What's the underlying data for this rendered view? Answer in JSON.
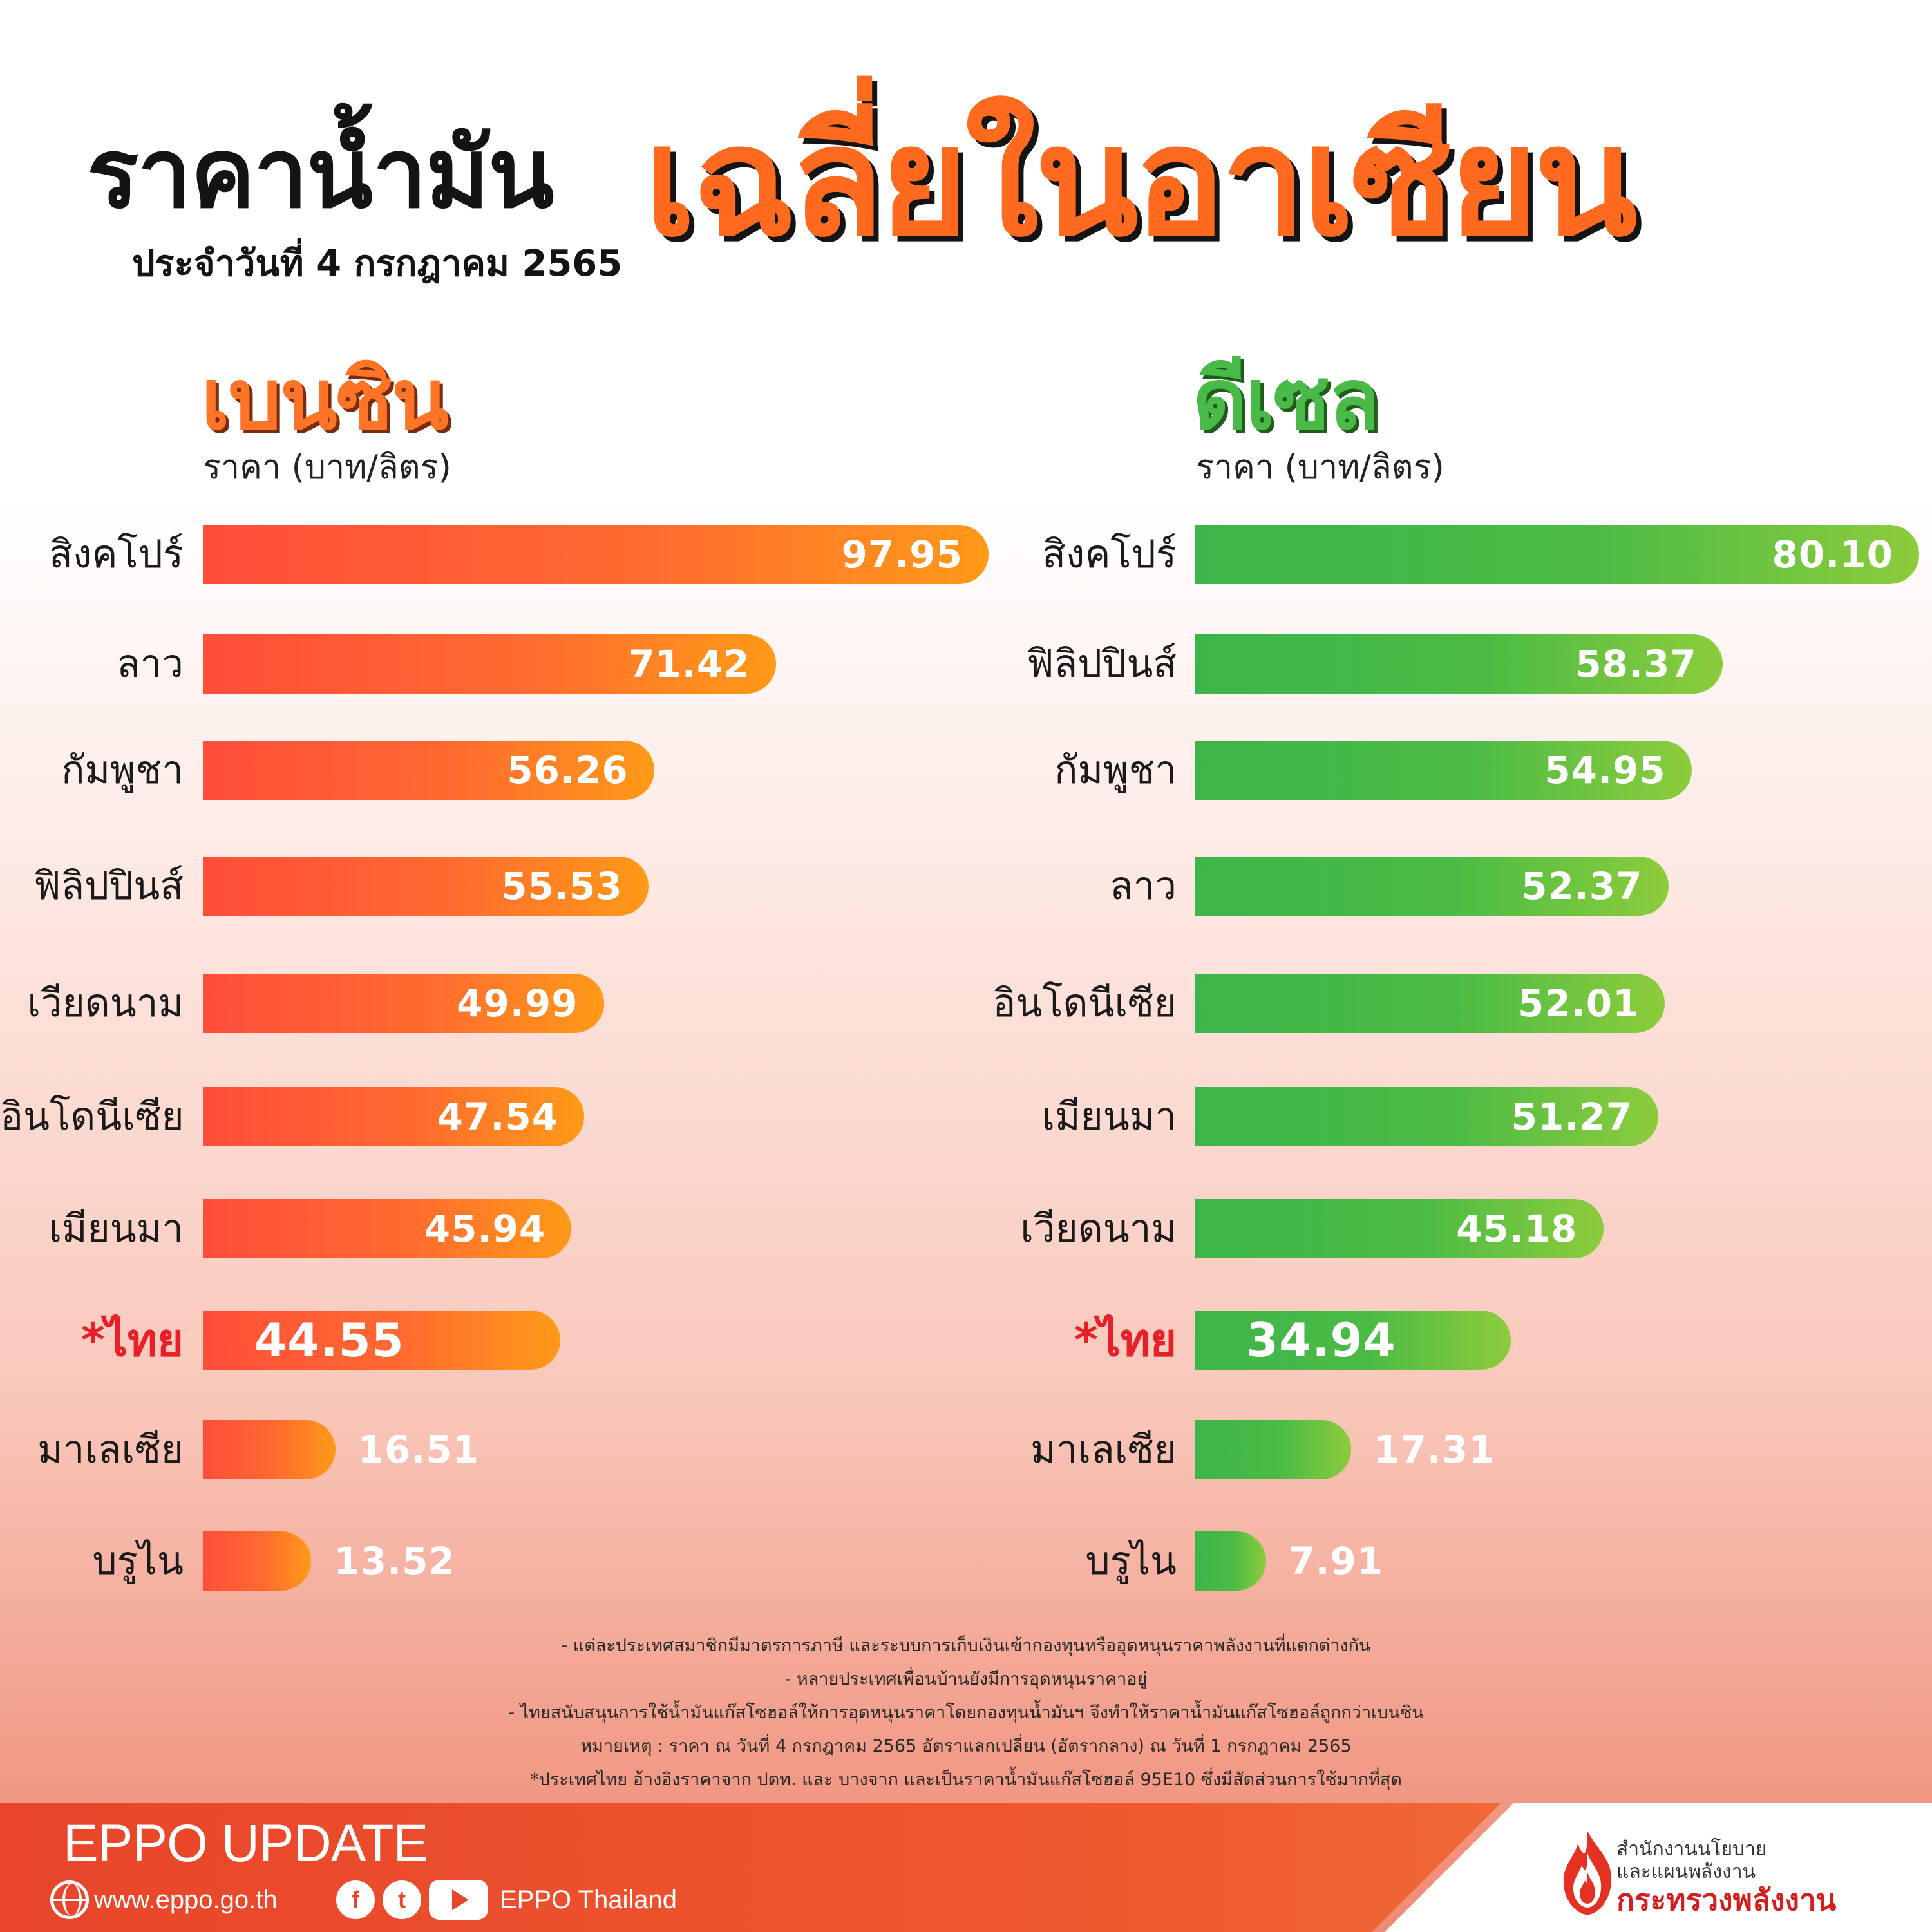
{
  "header": {
    "title": "ราคาน้ำมัน",
    "title_accent": "เฉลี่ยในอาเซียน",
    "date": "ประจำวันที่ 4 กรกฎาคม 2565"
  },
  "colors": {
    "petrol_accent": "#ff6a1f",
    "diesel_accent": "#49b947",
    "highlight_label": "#e8202a",
    "footer_band": "#e8452a"
  },
  "chart_data": [
    {
      "type": "bar",
      "orientation": "horizontal",
      "title": "เบนซิน",
      "xlabel": "ราคา (บาท/ลิตร)",
      "categories": [
        "สิงคโปร์",
        "ลาว",
        "กัมพูชา",
        "ฟิลิปปินส์",
        "เวียดนาม",
        "อินโดนีเซีย",
        "เมียนมา",
        "*ไทย",
        "มาเลเซีย",
        "บรูไน"
      ],
      "values": [
        97.95,
        71.42,
        56.26,
        55.53,
        49.99,
        47.54,
        45.94,
        44.55,
        16.51,
        13.52
      ],
      "value_labels": [
        "97.95",
        "71.42",
        "56.26",
        "55.53",
        "49.99",
        "47.54",
        "45.94",
        "44.55",
        "16.51",
        "13.52"
      ],
      "highlight_category": "*ไทย",
      "grid": false
    },
    {
      "type": "bar",
      "orientation": "horizontal",
      "title": "ดีเซล",
      "xlabel": "ราคา (บาท/ลิตร)",
      "categories": [
        "สิงคโปร์",
        "ฟิลิปปินส์",
        "กัมพูชา",
        "ลาว",
        "อินโดนีเซีย",
        "เมียนมา",
        "เวียดนาม",
        "*ไทย",
        "มาเลเซีย",
        "บรูไน"
      ],
      "values": [
        80.1,
        58.37,
        54.95,
        52.37,
        52.01,
        51.27,
        45.18,
        34.94,
        17.31,
        7.91
      ],
      "value_labels": [
        "80.10",
        "58.37",
        "54.95",
        "52.37",
        "52.01",
        "51.27",
        "45.18",
        "34.94",
        "17.31",
        "7.91"
      ],
      "highlight_category": "*ไทย",
      "grid": false
    }
  ],
  "notes": [
    "- แต่ละประเทศสมาชิกมีมาตรการภาษี และระบบการเก็บเงินเข้ากองทุนหรืออุดหนุนราคาพลังงานที่แตกต่างกัน",
    "- หลายประเทศเพื่อนบ้านยังมีการอุดหนุนราคาอยู่",
    "- ไทยสนับสนุนการใช้น้ำมันแก๊สโซฮอล์ให้การอุดหนุนราคาโดยกองทุนน้ำมันฯ จึงทำให้ราคาน้ำมันแก๊สโซฮอล์ถูกกว่าเบนซิน",
    "หมายเหตุ : ราคา ณ วันที่ 4 กรกฎาคม 2565 อัตราแลกเปลี่ยน (อัตรากลาง) ณ วันที่ 1 กรกฎาคม 2565",
    "*ประเทศไทย อ้างอิงราคาจาก ปตท. และ บางจาก และเป็นราคาน้ำมันแก๊สโซฮอล์ 95E10 ซึ่งมีสัดส่วนการใช้มากที่สุด"
  ],
  "footer": {
    "title": "EPPO UPDATE",
    "website": "www.eppo.go.th",
    "social_name": "EPPO Thailand",
    "social_icons": [
      "globe-icon",
      "facebook-icon",
      "twitter-icon",
      "youtube-icon"
    ],
    "icon_glyphs": {
      "facebook": "f",
      "twitter": "t"
    },
    "org_line1": "สำนักงานนโยบาย",
    "org_line2": "และแผนพลังงาน",
    "org_line3": "กระทรวงพลังงาน"
  }
}
